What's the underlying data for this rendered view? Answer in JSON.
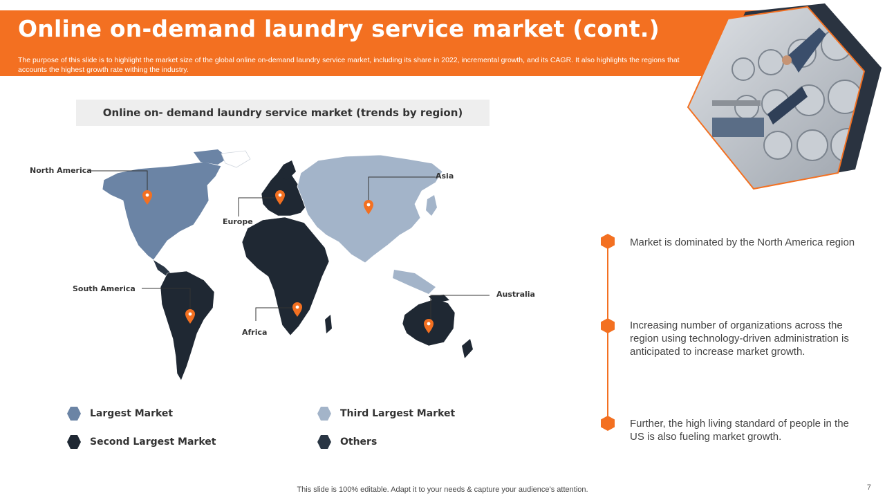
{
  "header": {
    "title": "Online on-demand laundry service market (cont.)",
    "subtitle": "The purpose of this slide is to highlight the market size of the global online on-demand laundry service market, including its share in 2022, incremental growth, and its CAGR. It also highlights the regions that accounts the highest growth rate withing the industry."
  },
  "section": {
    "heading": "Online on- demand laundry service market (trends by region)"
  },
  "map": {
    "regions": {
      "north_america": "North America",
      "europe": "Europe",
      "asia": "Asia",
      "south_america": "South America",
      "africa": "Africa",
      "australia": "Australia"
    }
  },
  "legend": [
    {
      "label": "Largest Market",
      "color": "#6b84a5"
    },
    {
      "label": "Third Largest Market",
      "color": "#a3b4c9"
    },
    {
      "label": "Second Largest Market",
      "color": "#1f2833"
    },
    {
      "label": "Others",
      "color": "#2a3644"
    }
  ],
  "insights": [
    "Market is dominated by the North America region",
    "Increasing number of organizations across the region using technology-driven  administration is anticipated to increase market growth.",
    "Further, the high living standard of people in the US is also fueling market growth."
  ],
  "colors": {
    "accent": "#f37021",
    "dark": "#1f2833"
  },
  "footer": {
    "note": "This slide is 100% editable. Adapt it to your needs & capture your audience’s attention.",
    "page": "7"
  }
}
